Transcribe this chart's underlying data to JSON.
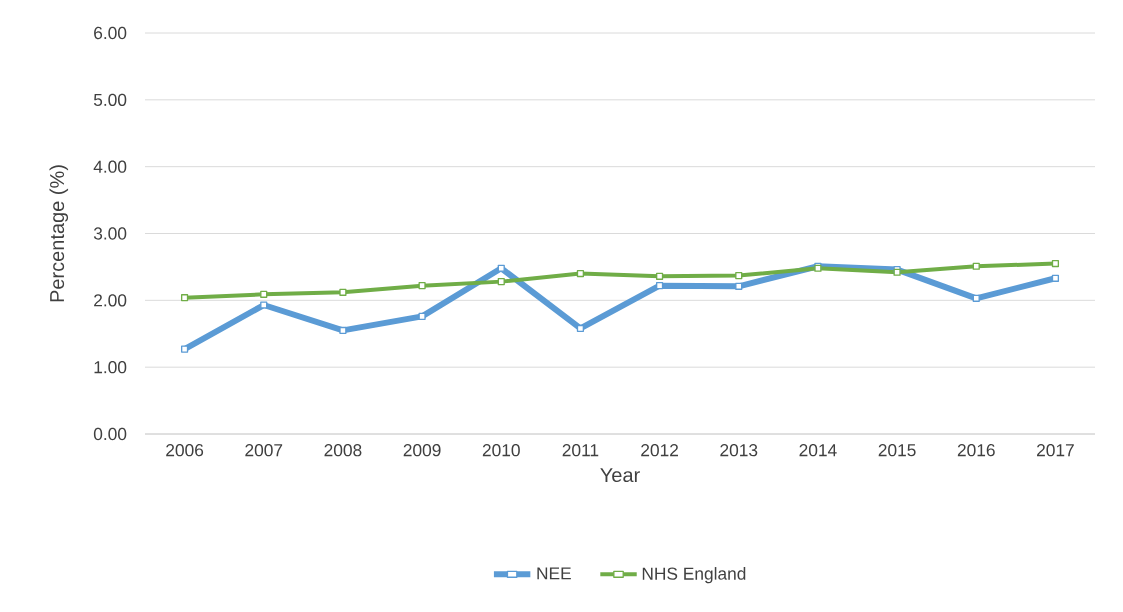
{
  "chart_data": {
    "type": "line",
    "xlabel": "Year",
    "ylabel": "Percentage (%)",
    "categories": [
      "2006",
      "2007",
      "2008",
      "2009",
      "2010",
      "2011",
      "2012",
      "2013",
      "2014",
      "2015",
      "2016",
      "2017"
    ],
    "series": [
      {
        "name": "NEE",
        "color": "#5b9bd5",
        "values": [
          1.27,
          1.93,
          1.55,
          1.76,
          2.48,
          1.58,
          2.22,
          2.21,
          2.51,
          2.46,
          2.03,
          2.33
        ]
      },
      {
        "name": "NHS England",
        "color": "#70ad47",
        "values": [
          2.04,
          2.09,
          2.12,
          2.22,
          2.28,
          2.4,
          2.36,
          2.37,
          2.48,
          2.42,
          2.51,
          2.55
        ]
      }
    ],
    "ylim": [
      0,
      6
    ],
    "yticks": [
      {
        "value": 0,
        "label": "0.00"
      },
      {
        "value": 1,
        "label": "1.00"
      },
      {
        "value": 2,
        "label": "2.00"
      },
      {
        "value": 3,
        "label": "3.00"
      },
      {
        "value": 4,
        "label": "4.00"
      },
      {
        "value": 5,
        "label": "5.00"
      },
      {
        "value": 6,
        "label": "6.00"
      }
    ],
    "grid": "y",
    "legend": "bottom",
    "marker": "square",
    "line_style": "solid"
  }
}
